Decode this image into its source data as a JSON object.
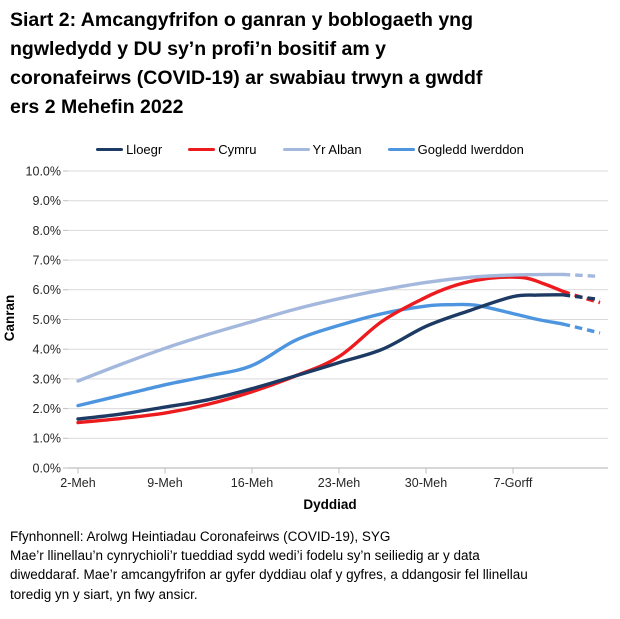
{
  "title_lines": [
    "Siart 2: Amcangyfrifon o ganran y boblogaeth yng",
    "ngwledydd y DU sy’n profi’n bositif am y",
    "coronafeirws (COVID-19) ar swabiau trwyn a gwddf",
    "ers 2 Mehefin 2022"
  ],
  "footer": {
    "source_line": "Ffynhonnell: Arolwg Heintiadau Coronafeirws (COVID-19), SYG",
    "note_lines": [
      "Mae’r llinellau’n cynrychioli’r tueddiad sydd wedi’i fodelu sy’n seiliedig ar y data",
      "diweddaraf. Mae’r amcangyfrifon ar gyfer dyddiau olaf y gyfres, a ddangosir fel llinellau",
      "toredig yn y siart, yn fwy ansicr."
    ]
  },
  "colors": {
    "grid": "#d9d9d9",
    "axis": "#bfbfbf",
    "tick_text": "#262626"
  },
  "chart_data": {
    "type": "line",
    "title": "Siart 2: Amcangyfrifon o ganran y boblogaeth yng ngwledydd y DU sy’n profi’n bositif am y coronafeirws (COVID-19) ar swabiau trwyn a gwddf ers 2 Mehefin 2022",
    "xlabel": "Dyddiad",
    "ylabel": "Canran",
    "ylim": [
      0,
      10
    ],
    "grid": "horizontal",
    "legend_position": "top",
    "ytick_labels": [
      "0.0%",
      "1.0%",
      "2.0%",
      "3.0%",
      "4.0%",
      "5.0%",
      "6.0%",
      "7.0%",
      "8.0%",
      "9.0%",
      "10.0%"
    ],
    "x_axis": {
      "tick_labels": [
        "2-Meh",
        "9-Meh",
        "16-Meh",
        "23-Meh",
        "30-Meh",
        "7-Gorff"
      ],
      "tick_days": [
        0,
        7,
        14,
        21,
        28,
        35
      ],
      "day_zero": "2 Mehefin 2022",
      "day_max": 42
    },
    "dashed_meaning": "llinellau toredig = amcangyfrifon dyddiau olaf y gyfres (mwy ansicr)",
    "series": [
      {
        "name": "Lloegr",
        "color": "#1c3a63",
        "points_solid": [
          [
            0,
            1.65
          ],
          [
            3.5,
            1.82
          ],
          [
            7,
            2.05
          ],
          [
            10.5,
            2.3
          ],
          [
            14,
            2.67
          ],
          [
            17.5,
            3.1
          ],
          [
            21,
            3.55
          ],
          [
            24.5,
            4.0
          ],
          [
            28,
            4.77
          ],
          [
            31.5,
            5.3
          ],
          [
            35,
            5.77
          ],
          [
            37,
            5.82
          ],
          [
            39,
            5.83
          ]
        ],
        "points_dashed": [
          [
            39,
            5.83
          ],
          [
            42,
            5.67
          ]
        ]
      },
      {
        "name": "Cymru",
        "color": "#ed1b1e",
        "points_solid": [
          [
            0,
            1.53
          ],
          [
            3.5,
            1.67
          ],
          [
            7,
            1.85
          ],
          [
            10.5,
            2.15
          ],
          [
            14,
            2.57
          ],
          [
            17.5,
            3.1
          ],
          [
            21,
            3.75
          ],
          [
            24.5,
            4.95
          ],
          [
            28,
            5.75
          ],
          [
            30,
            6.1
          ],
          [
            32,
            6.32
          ],
          [
            34,
            6.42
          ],
          [
            36,
            6.4
          ],
          [
            37.5,
            6.2
          ],
          [
            39,
            5.95
          ]
        ],
        "points_dashed": [
          [
            39,
            5.95
          ],
          [
            40.5,
            5.75
          ],
          [
            42,
            5.57
          ]
        ]
      },
      {
        "name": "Yr Alban",
        "color": "#a3b8dc",
        "points_solid": [
          [
            0,
            2.93
          ],
          [
            3.5,
            3.5
          ],
          [
            7,
            4.03
          ],
          [
            10.5,
            4.5
          ],
          [
            14,
            4.93
          ],
          [
            17.5,
            5.35
          ],
          [
            21,
            5.7
          ],
          [
            24.5,
            6.0
          ],
          [
            28,
            6.25
          ],
          [
            31.5,
            6.42
          ],
          [
            35,
            6.5
          ],
          [
            39,
            6.52
          ]
        ],
        "points_dashed": [
          [
            39,
            6.52
          ],
          [
            42,
            6.45
          ]
        ]
      },
      {
        "name": "Gogledd Iwerddon",
        "color": "#4e95e0",
        "points_solid": [
          [
            0,
            2.1
          ],
          [
            3.5,
            2.45
          ],
          [
            7,
            2.8
          ],
          [
            10.5,
            3.1
          ],
          [
            14,
            3.45
          ],
          [
            17.5,
            4.3
          ],
          [
            21,
            4.8
          ],
          [
            24.5,
            5.2
          ],
          [
            28,
            5.45
          ],
          [
            30,
            5.5
          ],
          [
            32,
            5.48
          ],
          [
            35,
            5.2
          ],
          [
            37,
            5.0
          ],
          [
            39,
            4.85
          ]
        ],
        "points_dashed": [
          [
            39,
            4.85
          ],
          [
            42,
            4.55
          ]
        ]
      }
    ]
  }
}
